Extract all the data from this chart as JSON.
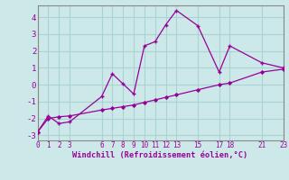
{
  "xlabel": "Windchill (Refroidissement éolien,°C)",
  "bg_color": "#cce8e8",
  "line_color": "#990099",
  "grid_color": "#aad4d4",
  "spine_color": "#888888",
  "line1_x": [
    0,
    1,
    2,
    3,
    6,
    7,
    8,
    9,
    10,
    11,
    12,
    13,
    15,
    17,
    18,
    21,
    23
  ],
  "line1_y": [
    -2.8,
    -1.85,
    -2.3,
    -2.2,
    -0.7,
    0.65,
    0.05,
    -0.55,
    2.3,
    2.55,
    3.55,
    4.4,
    3.5,
    0.75,
    2.3,
    1.3,
    1.0
  ],
  "line2_x": [
    0,
    1,
    2,
    3,
    6,
    7,
    8,
    9,
    10,
    11,
    12,
    13,
    15,
    17,
    18,
    21,
    23
  ],
  "line2_y": [
    -2.8,
    -2.0,
    -1.9,
    -1.85,
    -1.5,
    -1.4,
    -1.3,
    -1.2,
    -1.05,
    -0.9,
    -0.75,
    -0.6,
    -0.3,
    0.0,
    0.1,
    0.75,
    0.92
  ],
  "xticks": [
    0,
    1,
    2,
    3,
    6,
    7,
    8,
    9,
    10,
    11,
    12,
    13,
    15,
    17,
    18,
    21,
    23
  ],
  "yticks": [
    -3,
    -2,
    -1,
    0,
    1,
    2,
    3,
    4
  ],
  "xlim": [
    0,
    23
  ],
  "ylim": [
    -3.3,
    4.7
  ]
}
